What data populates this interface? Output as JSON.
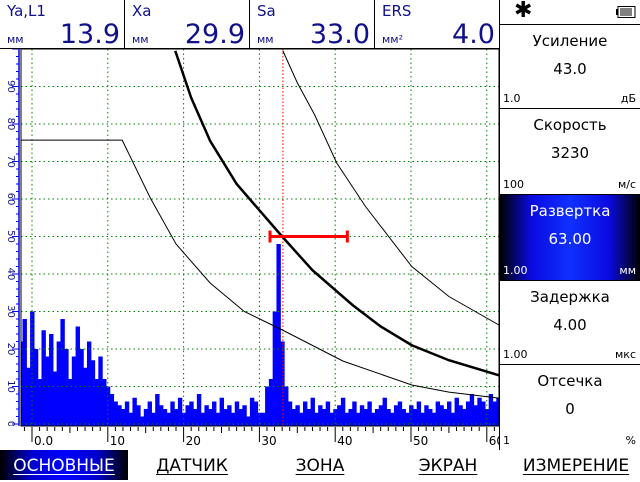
{
  "header": [
    {
      "label": "Ya,L1",
      "unit": "мм",
      "value": "13.9"
    },
    {
      "label": "Xa",
      "unit": "мм",
      "value": "29.9"
    },
    {
      "label": "Sa",
      "unit": "мм",
      "value": "33.0"
    },
    {
      "label": "ERS",
      "unit": "мм²",
      "value": "4.0"
    }
  ],
  "status": {
    "left_icon": "asterisk-icon",
    "right_icon": "battery-icon",
    "left_glyph": "✱"
  },
  "params": [
    {
      "title": "Усиление",
      "value": "43.0",
      "step": "1.0",
      "unit": "дБ",
      "active": false
    },
    {
      "title": "Скорость",
      "value": "3230",
      "step": "100",
      "unit": "м/с",
      "active": false
    },
    {
      "title": "Развертка",
      "value": "63.00",
      "step": "1.00",
      "unit": "мм",
      "active": true
    },
    {
      "title": "Задержка",
      "value": "4.00",
      "step": "1.00",
      "unit": "мкс",
      "active": false
    },
    {
      "title": "Отсечка",
      "value": "0",
      "step": "1",
      "unit": "%",
      "active": false
    }
  ],
  "tabs": [
    {
      "label": "ОСНОВНЫЕ",
      "active": true
    },
    {
      "label": "ДАТЧИК",
      "active": false
    },
    {
      "label": "ЗОНА",
      "active": false
    },
    {
      "label": "ЭКРАН",
      "active": false
    },
    {
      "label": "ИЗМЕРЕНИЕ",
      "active": false
    }
  ],
  "colors": {
    "signal": "#0000ff",
    "grid": "#008000",
    "gate": "#ff0000",
    "text": "#10108a",
    "curve": "#000000"
  },
  "chart_data": {
    "type": "area",
    "xlim": [
      -1.5,
      61.6
    ],
    "ylim": [
      0,
      100
    ],
    "x_ticks": [
      "0.0",
      "10",
      "20",
      "30",
      "40",
      "50",
      "60"
    ],
    "x_tick_values": [
      0,
      10,
      20,
      30,
      40,
      50,
      60
    ],
    "y_ticks": [
      "0",
      "10",
      "20",
      "30",
      "40",
      "50",
      "60",
      "70",
      "80",
      "90"
    ],
    "y_tick_values": [
      0,
      10,
      20,
      30,
      40,
      50,
      60,
      70,
      80,
      90
    ],
    "grid": true,
    "signal": {
      "x_start": -1.5,
      "x_step": 0.5,
      "values": [
        22,
        28,
        15,
        30,
        20,
        12,
        25,
        18,
        24,
        14,
        22,
        28,
        20,
        12,
        18,
        26,
        20,
        15,
        22,
        17,
        12,
        18,
        12,
        10,
        8,
        6,
        5,
        4,
        6,
        3,
        7,
        5,
        2,
        4,
        6,
        3,
        8,
        5,
        4,
        3,
        6,
        4,
        7,
        3,
        5,
        6,
        4,
        8,
        3,
        5,
        4,
        6,
        3,
        7,
        4,
        5,
        3,
        6,
        4,
        5,
        2,
        7,
        6,
        3,
        3,
        10,
        12,
        30,
        48,
        22,
        10,
        6,
        4,
        5,
        3,
        6,
        4,
        7,
        3,
        5,
        4,
        6,
        3,
        4,
        5,
        7,
        3,
        4,
        6,
        3,
        5,
        4,
        6,
        3,
        4,
        5,
        7,
        4,
        3,
        5,
        6,
        4,
        3,
        5,
        4,
        6,
        3,
        5,
        4,
        3,
        6,
        5,
        4,
        6,
        3,
        7,
        5,
        4,
        6,
        8,
        5,
        7,
        6,
        4,
        8,
        6,
        7
      ]
    },
    "curves": [
      {
        "role": "dac-reference",
        "points": [
          [
            18.9,
            99.5
          ],
          [
            21,
            87
          ],
          [
            23.5,
            75.5
          ],
          [
            27,
            64
          ],
          [
            33,
            50
          ],
          [
            37,
            41
          ],
          [
            42.3,
            31.7
          ],
          [
            46,
            26
          ],
          [
            50.1,
            21
          ],
          [
            55,
            17
          ],
          [
            61.6,
            13
          ]
        ]
      },
      {
        "role": "upper",
        "points": [
          [
            33.1,
            99.5
          ],
          [
            35,
            91
          ],
          [
            37.3,
            82.4
          ],
          [
            40.2,
            69.6
          ],
          [
            44,
            58
          ],
          [
            50.1,
            42
          ],
          [
            55,
            34
          ],
          [
            61.6,
            26.4
          ]
        ]
      },
      {
        "role": "lower",
        "points": [
          [
            -1.5,
            75.7
          ],
          [
            11.9,
            75.7
          ],
          [
            15.6,
            60.3
          ],
          [
            19,
            48
          ],
          [
            23.5,
            37.6
          ],
          [
            28,
            30
          ],
          [
            33.1,
            25
          ],
          [
            41,
            16.8
          ],
          [
            50.1,
            10.4
          ],
          [
            55,
            8.5
          ],
          [
            61.6,
            6.9
          ]
        ]
      }
    ],
    "gate": {
      "level": 50,
      "start": 31.4,
      "end": 41.6
    },
    "cursor_x": 33.1
  }
}
